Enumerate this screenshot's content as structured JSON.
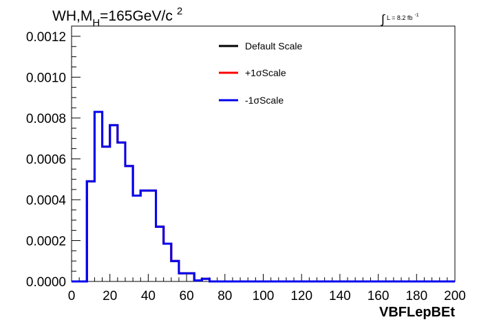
{
  "title": {
    "main": "WH,M",
    "subscript": "H",
    "rest": "=165GeV/c",
    "superscript": "2"
  },
  "luminosity": {
    "integral_symbol": "∫",
    "text": "L = 8.2 fb",
    "superscript": "-1"
  },
  "chart_data": {
    "type": "line",
    "xlabel": "VBFLepBEt",
    "ylabel": "",
    "xlim": [
      0,
      200
    ],
    "ylim": [
      0,
      0.00125
    ],
    "x_ticks": [
      0,
      20,
      40,
      60,
      80,
      100,
      120,
      140,
      160,
      180,
      200
    ],
    "x_tick_labels": [
      "0",
      "20",
      "40",
      "60",
      "80",
      "100",
      "120",
      "140",
      "160",
      "180",
      "200"
    ],
    "y_ticks": [
      0.0,
      0.0002,
      0.0004,
      0.0006,
      0.0008,
      0.001,
      0.0012
    ],
    "y_tick_labels": [
      "0.0000",
      "0.0002",
      "0.0004",
      "0.0006",
      "0.0008",
      "0.0010",
      "0.0012"
    ],
    "grid": false,
    "legend_position": "top-center",
    "bin_edges": [
      0,
      4,
      8,
      12,
      16,
      20,
      24,
      28,
      32,
      36,
      40,
      44,
      48,
      52,
      56,
      60,
      64,
      68,
      72,
      76,
      80,
      84,
      88,
      92,
      96,
      100,
      104,
      108,
      112,
      116,
      120,
      124,
      128,
      132,
      136,
      140,
      144,
      148,
      152,
      156,
      160,
      164,
      168,
      172,
      176,
      180,
      184,
      188,
      192,
      196,
      200
    ],
    "series": [
      {
        "name": "Default Scale",
        "color": "#000000",
        "values": [
          0,
          0,
          0.00049,
          0.00083,
          0.00066,
          0.000765,
          0.00068,
          0.000565,
          0.00042,
          0.000445,
          0.000445,
          0.000268,
          0.000185,
          0.0001,
          4e-05,
          4e-05,
          5e-06,
          1.3e-05,
          0,
          0,
          0,
          0,
          0,
          0,
          0,
          0,
          0,
          0,
          0,
          0,
          0,
          0,
          0,
          0,
          0,
          0,
          0,
          0,
          0,
          0,
          0,
          0,
          0,
          0,
          0,
          0,
          0,
          0,
          0,
          0
        ]
      },
      {
        "name": "+1σScale",
        "color": "#ff0000",
        "values": [
          0,
          0,
          0.00049,
          0.00083,
          0.00066,
          0.000765,
          0.00068,
          0.000565,
          0.00042,
          0.000445,
          0.000445,
          0.000268,
          0.000185,
          0.0001,
          4e-05,
          4e-05,
          5e-06,
          1.3e-05,
          0,
          0,
          0,
          0,
          0,
          0,
          0,
          0,
          0,
          0,
          0,
          0,
          0,
          0,
          0,
          0,
          0,
          0,
          0,
          0,
          0,
          0,
          0,
          0,
          0,
          0,
          0,
          0,
          0,
          0,
          0,
          0
        ]
      },
      {
        "name": "-1σScale",
        "color": "#0000ee",
        "values": [
          0,
          0,
          0.00049,
          0.00083,
          0.00066,
          0.000765,
          0.00068,
          0.000565,
          0.00042,
          0.000445,
          0.000445,
          0.000268,
          0.000185,
          0.0001,
          4e-05,
          4e-05,
          5e-06,
          1.3e-05,
          0,
          0,
          0,
          0,
          0,
          0,
          0,
          0,
          0,
          0,
          0,
          0,
          0,
          0,
          0,
          0,
          0,
          0,
          0,
          0,
          0,
          0,
          0,
          0,
          0,
          0,
          0,
          0,
          0,
          0,
          0,
          0
        ]
      }
    ]
  }
}
